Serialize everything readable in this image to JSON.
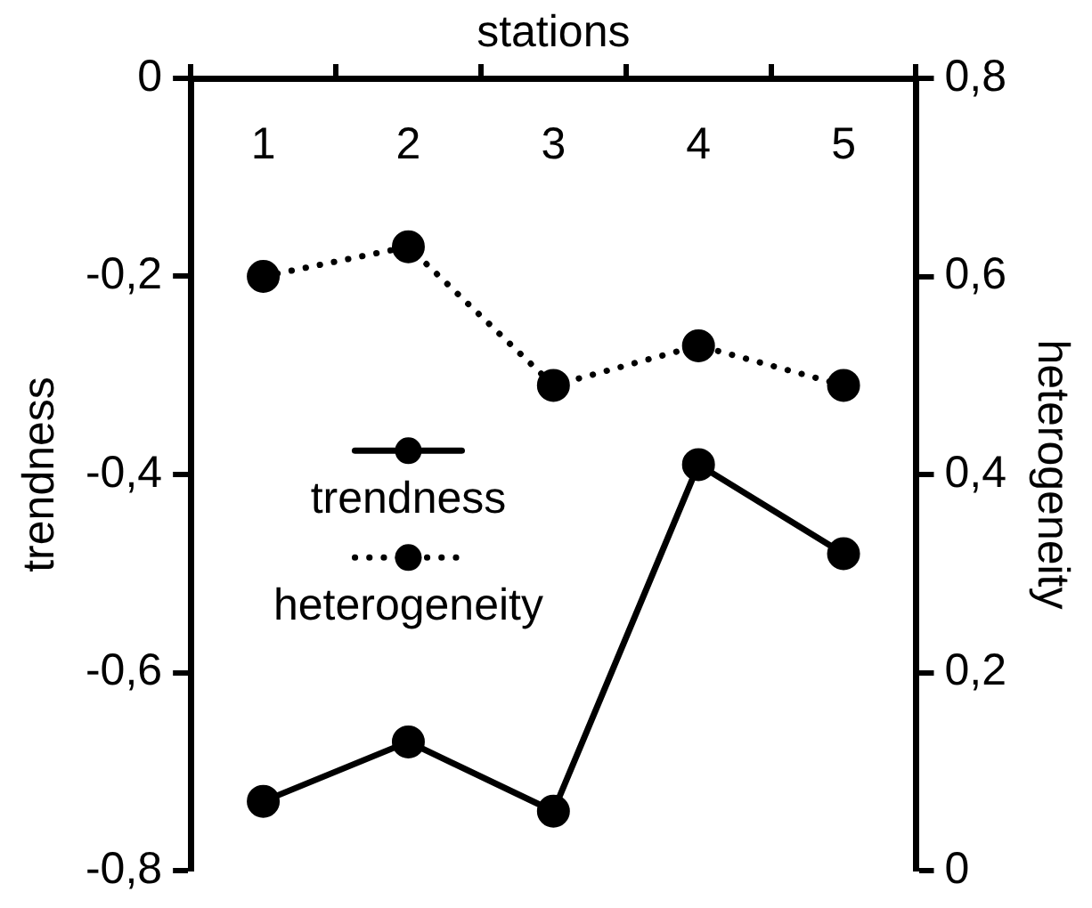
{
  "chart_data": {
    "type": "line",
    "xlabel": "stations",
    "ylabel": "trendness",
    "y2label": "heterogeneity",
    "categories": [
      "1",
      "2",
      "3",
      "4",
      "5"
    ],
    "series": [
      {
        "name": "trendness",
        "color": "#000000",
        "line_style": "solid",
        "values": [
          -0.73,
          -0.67,
          -0.74,
          -0.39,
          -0.48
        ]
      },
      {
        "name": "heterogeneity",
        "color": "#000000",
        "line_style": "dotted",
        "axis": "y2",
        "values": [
          0.6,
          0.63,
          0.49,
          0.53,
          0.49
        ]
      }
    ],
    "ylim": [
      -0.8,
      0
    ],
    "yticks": [
      {
        "value": -0.8,
        "label": "-0,8"
      },
      {
        "value": -0.6,
        "label": "-0,6"
      },
      {
        "value": -0.4,
        "label": "-0,4"
      },
      {
        "value": -0.2,
        "label": "-0,2"
      },
      0
    ],
    "y2lim": [
      0,
      0.8
    ],
    "y2ticks": [
      0,
      {
        "value": 0.2,
        "label": "0,2"
      },
      {
        "value": 0.4,
        "label": "0,4"
      },
      {
        "value": 0.6,
        "label": "0,6"
      },
      {
        "value": 0.8,
        "label": "0,8"
      }
    ],
    "marker": "circle",
    "grid": false,
    "legend": "left"
  }
}
